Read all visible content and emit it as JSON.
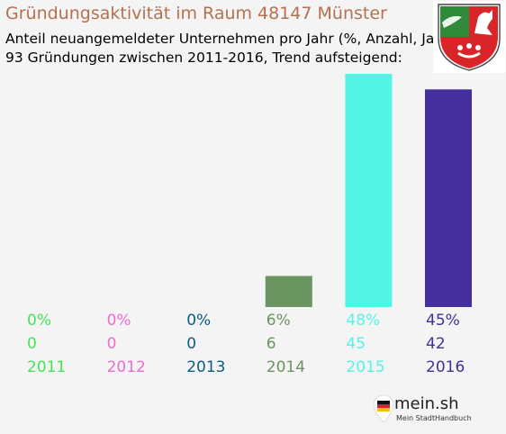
{
  "chart_data": {
    "type": "bar",
    "title": "Gründungsaktivität im Raum 48147 Münster",
    "subtitle_lines": [
      "Anteil neuangemeldeter Unternehmen pro Jahr (%, Anzahl, Jahr)",
      "93 Gründungen zwischen 2011-2016, Trend aufsteigend:"
    ],
    "categories": [
      "2011",
      "2012",
      "2013",
      "2014",
      "2015",
      "2016"
    ],
    "percent_labels": [
      "0%",
      "0%",
      "0%",
      "6%",
      "48%",
      "45%"
    ],
    "values": [
      0,
      0,
      0,
      6,
      45,
      42
    ],
    "colors": [
      "#45e35a",
      "#ee6bd3",
      "#0b5c85",
      "#6a9560",
      "#52f4e6",
      "#452f9d"
    ],
    "ylim": [
      0,
      45
    ],
    "grid": false,
    "legend": "none"
  },
  "logo": {
    "text": "mein.sh",
    "subtext": "Mein StadtHandbuch"
  },
  "coat_of_arms": {
    "icon": "nrw-coat-of-arms-icon"
  }
}
